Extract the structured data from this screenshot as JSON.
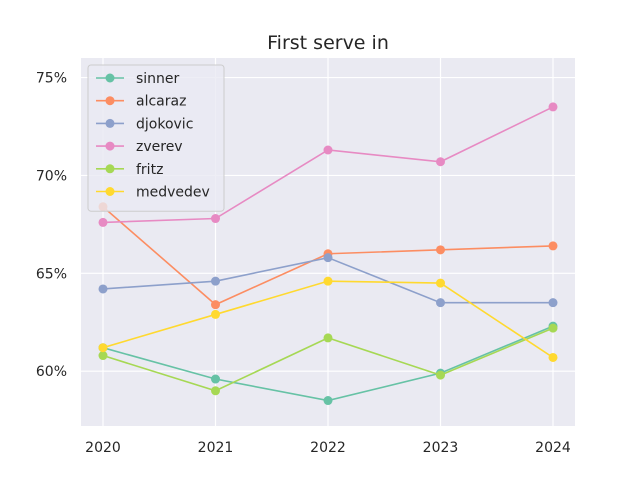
{
  "chart_data": {
    "type": "line",
    "title": "First serve in",
    "xlabel": "",
    "ylabel": "",
    "x": [
      "2020",
      "2021",
      "2022",
      "2023",
      "2024"
    ],
    "ylim": [
      57.2,
      76.0
    ],
    "yticks": [
      60,
      65,
      70,
      75
    ],
    "ytick_labels": [
      "60%",
      "65%",
      "70%",
      "75%"
    ],
    "grid": true,
    "legend_position": "top-left",
    "series": [
      {
        "name": "sinner",
        "color": "#66c2a5",
        "values": [
          61.2,
          59.6,
          58.5,
          59.9,
          62.3
        ]
      },
      {
        "name": "alcaraz",
        "color": "#fc8d62",
        "values": [
          68.4,
          63.4,
          66.0,
          66.2,
          66.4
        ]
      },
      {
        "name": "djokovic",
        "color": "#8da0cb",
        "values": [
          64.2,
          64.6,
          65.8,
          63.5,
          63.5
        ]
      },
      {
        "name": "zverev",
        "color": "#e78ac3",
        "values": [
          67.6,
          67.8,
          71.3,
          70.7,
          73.5
        ]
      },
      {
        "name": "fritz",
        "color": "#a6d854",
        "values": [
          60.8,
          59.0,
          61.7,
          59.8,
          62.2
        ]
      },
      {
        "name": "medvedev",
        "color": "#ffd92f",
        "values": [
          61.2,
          62.9,
          64.6,
          64.5,
          60.7
        ]
      }
    ]
  }
}
